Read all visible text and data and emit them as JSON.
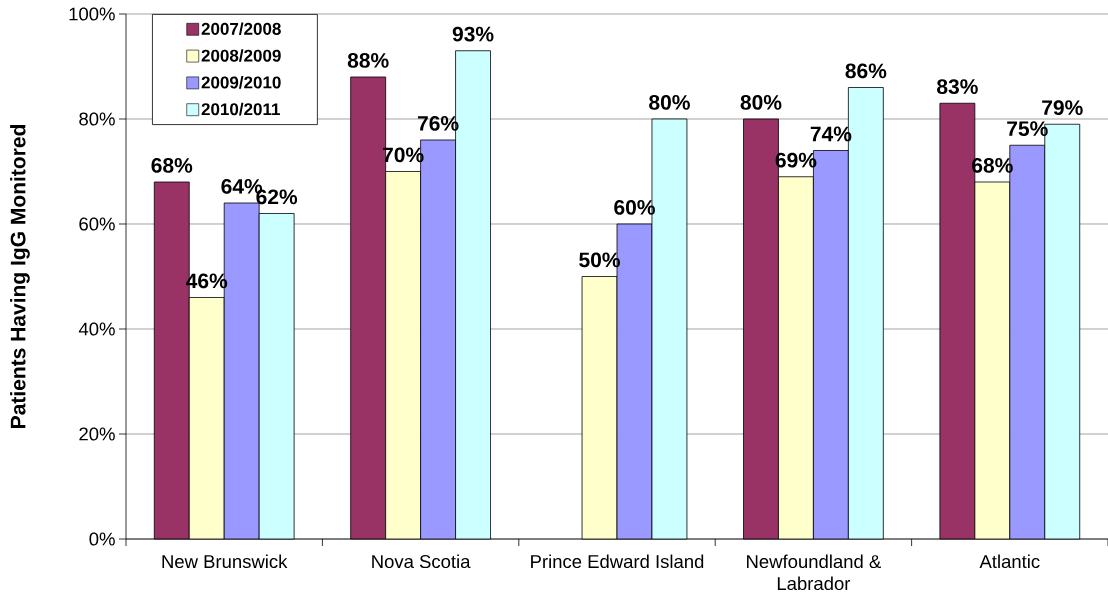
{
  "chart_data": {
    "type": "bar",
    "ylabel": "Patients Having IgG Monitored",
    "categories": [
      "New Brunswick",
      "Nova Scotia",
      "Prince Edward Island",
      "Newfoundland & Labrador",
      "Atlantic"
    ],
    "series": [
      {
        "name": "2007/2008",
        "color": "#993366",
        "values": [
          68,
          88,
          null,
          80,
          83
        ],
        "value_labels": [
          "68%",
          "88%",
          null,
          "80%",
          "83%"
        ]
      },
      {
        "name": "2008/2009",
        "color": "#ffffcc",
        "values": [
          46,
          70,
          50,
          69,
          68
        ],
        "value_labels": [
          "46%",
          "70%",
          "50%",
          "69%",
          "68%"
        ]
      },
      {
        "name": "2009/2010",
        "color": "#9999ff",
        "values": [
          64,
          76,
          60,
          74,
          75
        ],
        "value_labels": [
          "64%",
          "76%",
          "60%",
          "74%",
          "75%"
        ]
      },
      {
        "name": "2010/2011",
        "color": "#ccffff",
        "values": [
          62,
          93,
          80,
          86,
          79
        ],
        "value_labels": [
          "62%",
          "93%",
          "80%",
          "86%",
          "79%"
        ]
      }
    ],
    "ylim": [
      0,
      100
    ],
    "yticks": [
      {
        "value": 0,
        "label": "0%"
      },
      {
        "value": 20,
        "label": "20%"
      },
      {
        "value": 40,
        "label": "40%"
      },
      {
        "value": 60,
        "label": "60%"
      },
      {
        "value": 80,
        "label": "80%"
      },
      {
        "value": 100,
        "label": "100%"
      }
    ],
    "grid": "y",
    "legend": "top left"
  }
}
